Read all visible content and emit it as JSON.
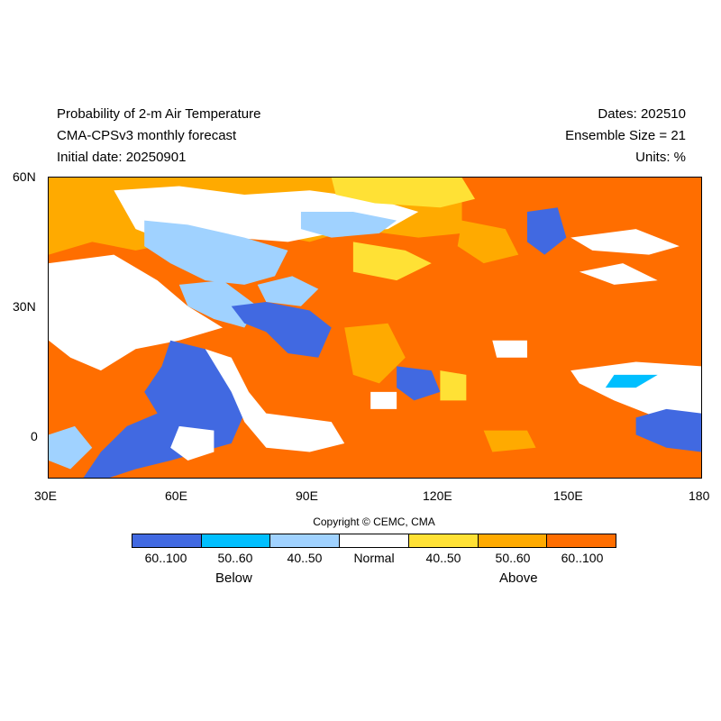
{
  "header": {
    "title_lines": [
      "Probability of 2-m Air Temperature",
      "CMA-CPSv3 monthly forecast",
      "Initial date: 20250901"
    ],
    "right_lines": [
      "Dates: 202510",
      "Ensemble Size = 21",
      "Units: %"
    ]
  },
  "map": {
    "lon_range": [
      30,
      180
    ],
    "lat_range": [
      -10,
      60
    ],
    "lat_ticks": [
      "60N",
      "30N",
      "0"
    ],
    "lon_ticks": [
      "30E",
      "60E",
      "90E",
      "120E",
      "150E",
      "180"
    ]
  },
  "copyright": "Copyright © CEMC, CMA",
  "legend": {
    "categories": [
      {
        "label": "60..100",
        "color": "#4169E1"
      },
      {
        "label": "50..60",
        "color": "#00BFFF"
      },
      {
        "label": "40..50",
        "color": "#A0D2FF"
      },
      {
        "label": "Normal",
        "color": "#FFFFFF"
      },
      {
        "label": "40..50",
        "color": "#FFE135"
      },
      {
        "label": "50..60",
        "color": "#FFAA00"
      },
      {
        "label": "60..100",
        "color": "#FF6E00"
      }
    ],
    "below_label": "Below",
    "above_label": "Above"
  }
}
